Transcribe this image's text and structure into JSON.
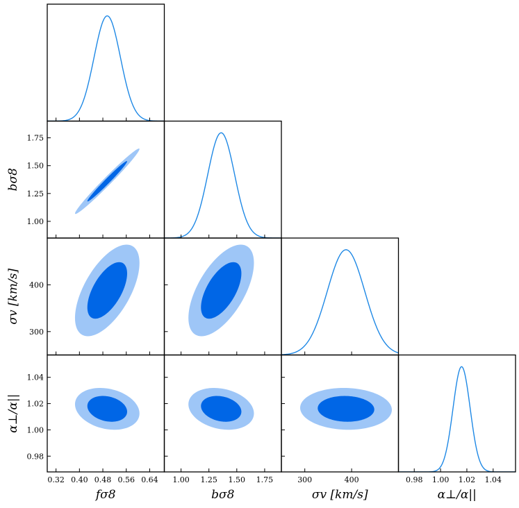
{
  "chart_data": {
    "type": "corner",
    "title": "",
    "parameters": [
      {
        "key": "fs8",
        "label": "fσ8",
        "range": [
          0.29,
          0.69
        ],
        "ticks": [
          0.32,
          0.4,
          0.48,
          0.56,
          0.64
        ],
        "tick_labels": [
          "0.32",
          "0.40",
          "0.48",
          "0.56",
          "0.64"
        ],
        "mean": 0.495,
        "sigma": 0.045
      },
      {
        "key": "bs8",
        "label": "bσ8",
        "range": [
          0.85,
          1.9
        ],
        "ticks": [
          1.0,
          1.25,
          1.5,
          1.75
        ],
        "tick_labels": [
          "1.00",
          "1.25",
          "1.50",
          "1.75"
        ],
        "mean": 1.36,
        "sigma": 0.12
      },
      {
        "key": "sv",
        "label": "σv [km/s]",
        "range": [
          250,
          500
        ],
        "ticks": [
          300,
          400
        ],
        "tick_labels": [
          "300",
          "400"
        ],
        "mean": 388,
        "sigma": 40
      },
      {
        "key": "aa",
        "label": "α⊥/α||",
        "range": [
          0.968,
          1.057
        ],
        "ticks": [
          0.98,
          1.0,
          1.02,
          1.04
        ],
        "tick_labels": [
          "0.98",
          "1.00",
          "1.02",
          "1.04"
        ],
        "mean": 1.016,
        "sigma": 0.0065
      }
    ],
    "correlations": [
      {
        "pair": [
          "fs8",
          "bs8"
        ],
        "rho": 0.985
      },
      {
        "pair": [
          "fs8",
          "sv"
        ],
        "rho": 0.6
      },
      {
        "pair": [
          "bs8",
          "sv"
        ],
        "rho": 0.6
      },
      {
        "pair": [
          "fs8",
          "aa"
        ],
        "rho": -0.22
      },
      {
        "pair": [
          "bs8",
          "aa"
        ],
        "rho": -0.22
      },
      {
        "pair": [
          "sv",
          "aa"
        ],
        "rho": -0.05
      }
    ],
    "contour_levels": [
      "68%",
      "95%"
    ],
    "colors": {
      "inner": "#0066e6",
      "outer": "#9ec6f7",
      "line": "#1e88e5",
      "axes": "#000000"
    },
    "grid": false,
    "legend": "none"
  }
}
